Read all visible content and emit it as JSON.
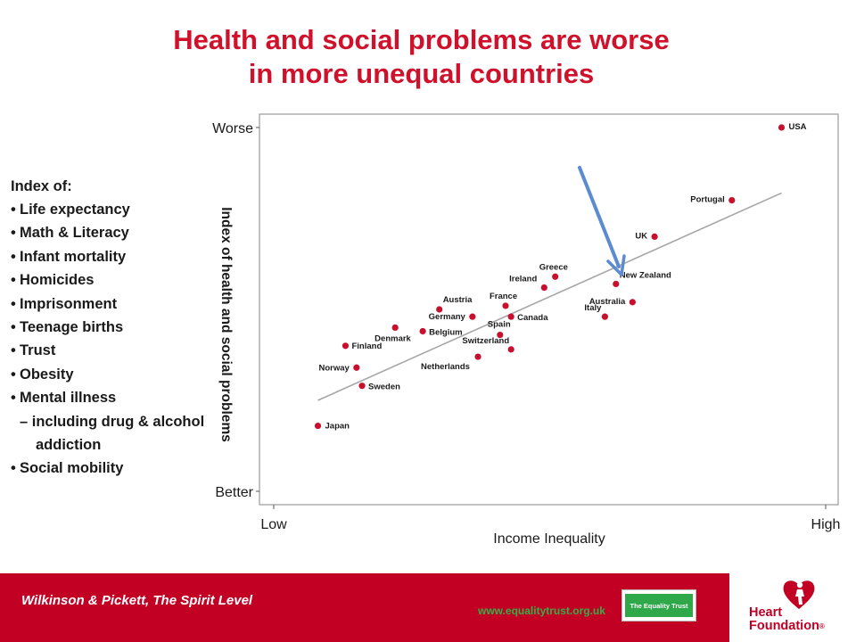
{
  "title": {
    "line1": "Health and social problems are worse",
    "line2": "in more unequal countries"
  },
  "index_list": {
    "heading": "Index of:",
    "items": [
      "Life expectancy",
      "Math & Literacy",
      "Infant mortality",
      "Homicides",
      "Imprisonment",
      "Teenage births",
      "Trust",
      "Obesity",
      "Mental illness",
      "Social mobility"
    ],
    "mental_illness_sub": "– including drug & alcohol addiction"
  },
  "chart_data": {
    "type": "scatter",
    "title": "",
    "xlabel": "Income Inequality",
    "ylabel": "Index of health and social problems",
    "x_tick_labels": [
      "Low",
      "High"
    ],
    "y_tick_labels": [
      "Better",
      "Worse"
    ],
    "xlim": [
      0,
      100
    ],
    "ylim": [
      0,
      100
    ],
    "grid": false,
    "legend": "none",
    "point_color": "#c8102e",
    "trend_color": "#a6a6a6",
    "arrow_color": "#5b8bd1",
    "trend_line": {
      "x": [
        8,
        92
      ],
      "y": [
        25,
        82
      ]
    },
    "points": [
      {
        "label": "USA",
        "x": 92,
        "y": 100
      },
      {
        "label": "Portugal",
        "x": 83,
        "y": 80
      },
      {
        "label": "UK",
        "x": 69,
        "y": 70
      },
      {
        "label": "Greece",
        "x": 51,
        "y": 59
      },
      {
        "label": "Ireland",
        "x": 49,
        "y": 56
      },
      {
        "label": "New Zealand",
        "x": 62,
        "y": 57
      },
      {
        "label": "Australia",
        "x": 65,
        "y": 52
      },
      {
        "label": "Italy",
        "x": 60,
        "y": 48
      },
      {
        "label": "France",
        "x": 42,
        "y": 51
      },
      {
        "label": "Canada",
        "x": 43,
        "y": 48
      },
      {
        "label": "Austria",
        "x": 30,
        "y": 50
      },
      {
        "label": "Germany",
        "x": 36,
        "y": 48
      },
      {
        "label": "Belgium",
        "x": 27,
        "y": 44
      },
      {
        "label": "Denmark",
        "x": 22,
        "y": 45
      },
      {
        "label": "Spain",
        "x": 41,
        "y": 43
      },
      {
        "label": "Switzerland",
        "x": 43,
        "y": 39
      },
      {
        "label": "Netherlands",
        "x": 37,
        "y": 37
      },
      {
        "label": "Finland",
        "x": 13,
        "y": 40
      },
      {
        "label": "Norway",
        "x": 15,
        "y": 34
      },
      {
        "label": "Sweden",
        "x": 16,
        "y": 29
      },
      {
        "label": "Japan",
        "x": 8,
        "y": 18
      }
    ]
  },
  "footer": {
    "citation": "Wilkinson & Pickett, The Spirit Level",
    "url": "www.equalitytrust.org.uk",
    "logo_text": "The Equality Trust",
    "brand_line1": "Heart",
    "brand_line2": "Foundation",
    "brand_mark": "®"
  },
  "colors": {
    "title_red": "#d0112b",
    "footer_red": "#c20024",
    "logo_green": "#2fa84a"
  }
}
